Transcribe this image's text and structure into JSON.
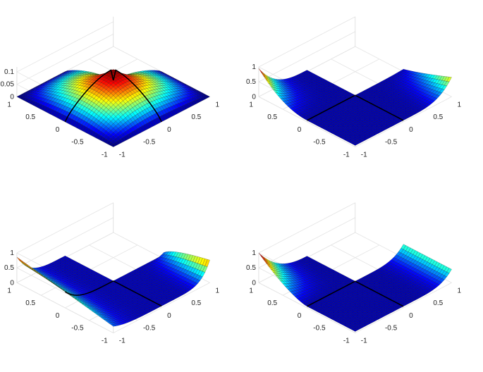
{
  "chart_data": [
    {
      "type": "surface",
      "domain": "L-shaped membrane over [-1,1] x [-1,1] (quadrant removed)",
      "colormap": "jet",
      "x_ticks": [
        "-1",
        "-0.5",
        "0",
        "0.5",
        "1"
      ],
      "y_ticks": [
        "-1",
        "-0.5",
        "0",
        "0.5",
        "1"
      ],
      "z_ticks": [
        "0",
        "0.05",
        "0.1"
      ],
      "zlim": [
        0,
        0.12
      ],
      "grid": true,
      "peak_value": 0.12
    },
    {
      "type": "surface",
      "domain": "L-shaped membrane over [-1,1] x [-1,1] (quadrant removed)",
      "colormap": "jet",
      "x_ticks": [
        "-1",
        "-0.5",
        "0",
        "0.5",
        "1"
      ],
      "y_ticks": [
        "-1",
        "-0.5",
        "0",
        "0.5",
        "1"
      ],
      "z_ticks": [
        "0",
        "0.5",
        "1"
      ],
      "zlim": [
        0,
        1
      ],
      "grid": true,
      "peak_value": 1.0
    },
    {
      "type": "surface",
      "domain": "L-shaped membrane over [-1,1] x [-1,1] (quadrant removed)",
      "colormap": "jet",
      "x_ticks": [
        "-1",
        "-0.5",
        "0",
        "0.5",
        "1"
      ],
      "y_ticks": [
        "-1",
        "-0.5",
        "0",
        "0.5",
        "1"
      ],
      "z_ticks": [
        "0",
        "0.5",
        "1"
      ],
      "zlim": [
        0,
        1
      ],
      "grid": true,
      "peak_value": 1.0
    },
    {
      "type": "surface",
      "domain": "L-shaped membrane over [-1,1] x [-1,1] (quadrant removed)",
      "colormap": "jet",
      "x_ticks": [
        "-1",
        "-0.5",
        "0",
        "0.5",
        "1"
      ],
      "y_ticks": [
        "-1",
        "-0.5",
        "0",
        "0.5",
        "1"
      ],
      "z_ticks": [
        "0",
        "0.5",
        "1"
      ],
      "zlim": [
        0,
        1
      ],
      "grid": true,
      "peak_value": 1.0
    }
  ]
}
